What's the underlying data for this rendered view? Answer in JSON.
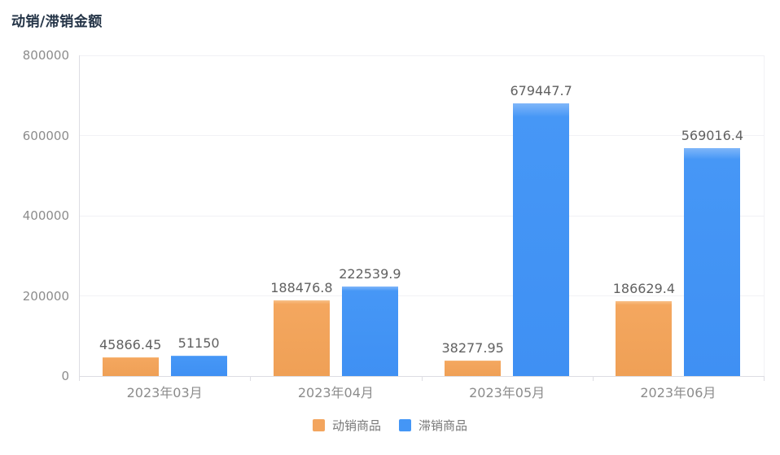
{
  "title": "动销/滞销金额",
  "chart_data": {
    "type": "bar",
    "title": "动销/滞销金额",
    "categories": [
      "2023年03月",
      "2023年04月",
      "2023年05月",
      "2023年06月"
    ],
    "series": [
      {
        "name": "动销商品",
        "color": "#F3A55E",
        "values": [
          45866.45,
          188476.8,
          38277.95,
          186629.4
        ],
        "labels": [
          "45866.45",
          "188476.8",
          "38277.95",
          "186629.4"
        ]
      },
      {
        "name": "滞销商品",
        "color": "#4496F6",
        "values": [
          51150,
          222539.9,
          679447.7,
          569016.4
        ],
        "labels": [
          "51150",
          "222539.9",
          "679447.7",
          "569016.4"
        ]
      }
    ],
    "xlabel": "",
    "ylabel": "",
    "ylim": [
      0,
      800000
    ],
    "y_ticks": [
      0,
      200000,
      400000,
      600000,
      800000
    ],
    "grid": true,
    "legend_position": "bottom",
    "value_labels": true,
    "colors": {
      "title_text": "#243447",
      "axis_label_text": "#8c8c8c",
      "value_label_text": "#616161",
      "axis_line": "#dddde3",
      "gridline": "#f1f1f5",
      "background": "#ffffff"
    }
  }
}
